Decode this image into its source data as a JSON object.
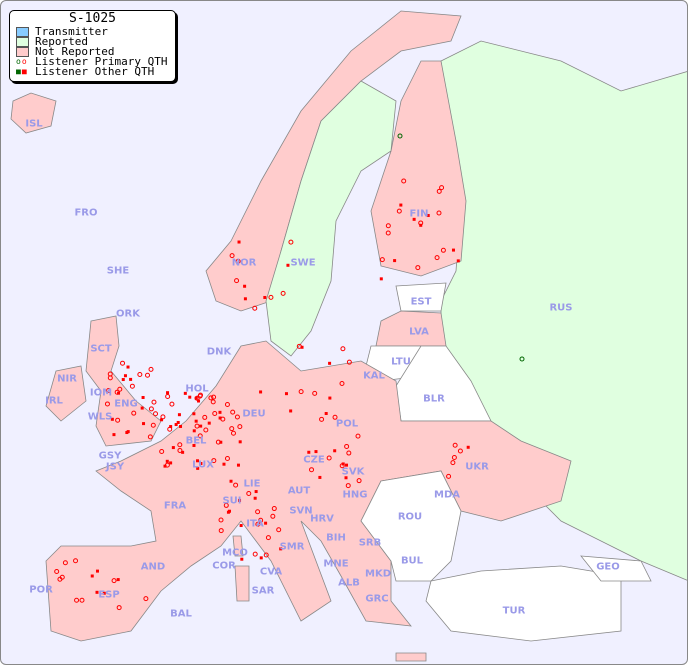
{
  "legend": {
    "title": "S-1025",
    "items": [
      {
        "label": "Transmitter",
        "color": "#88ccff"
      },
      {
        "label": "Reported",
        "color": "#e0ffe0"
      },
      {
        "label": "Not Reported",
        "color": "#ffcccc"
      },
      {
        "label": "Listener Primary QTH",
        "icon": "circle-marker"
      },
      {
        "label": "Listener Other QTH",
        "icon": "square-marker"
      }
    ]
  },
  "colors": {
    "sea": "#f0f0ff",
    "reported": "#e0ffe0",
    "not_reported": "#ffcccc",
    "no_data": "#ffffff",
    "listener": "#ff0000",
    "listener_reported": "#006600",
    "label": "#9a9ae8"
  },
  "countries": {
    "isl": "ISL",
    "fro": "FRO",
    "she": "SHE",
    "ork": "ORK",
    "nor": "NOR",
    "swe": "SWE",
    "fin": "FIN",
    "rus": "RUS",
    "est": "EST",
    "lva": "LVA",
    "ltu": "LTU",
    "kal": "KAL",
    "blr": "BLR",
    "dnk": "DNK",
    "sct": "SCT",
    "nir": "NIR",
    "iom": "IOM",
    "irl": "IRL",
    "eng": "ENG",
    "wls": "WLS",
    "gsy": "GSY",
    "jsy": "JSY",
    "hol": "HOL",
    "bel": "BEL",
    "deu": "DEU",
    "pol": "POL",
    "lux": "LUX",
    "cze": "CZE",
    "svk": "SVK",
    "ukr": "UKR",
    "fra": "FRA",
    "sui": "SUI",
    "lie": "LIE",
    "aut": "AUT",
    "hng": "HNG",
    "mda": "MDA",
    "svn": "SVN",
    "hrv": "HRV",
    "rou": "ROU",
    "ita": "ITA",
    "bih": "BIH",
    "srb": "SRB",
    "mco": "MCO",
    "cor": "COR",
    "smr": "SMR",
    "mne": "MNE",
    "bul": "BUL",
    "geo": "GEO",
    "and": "AND",
    "cva": "CVA",
    "alb": "ALB",
    "mkd": "MKD",
    "por": "POR",
    "esp": "ESP",
    "sar": "SAR",
    "grc": "GRC",
    "tur": "TUR",
    "bal": "BAL"
  }
}
